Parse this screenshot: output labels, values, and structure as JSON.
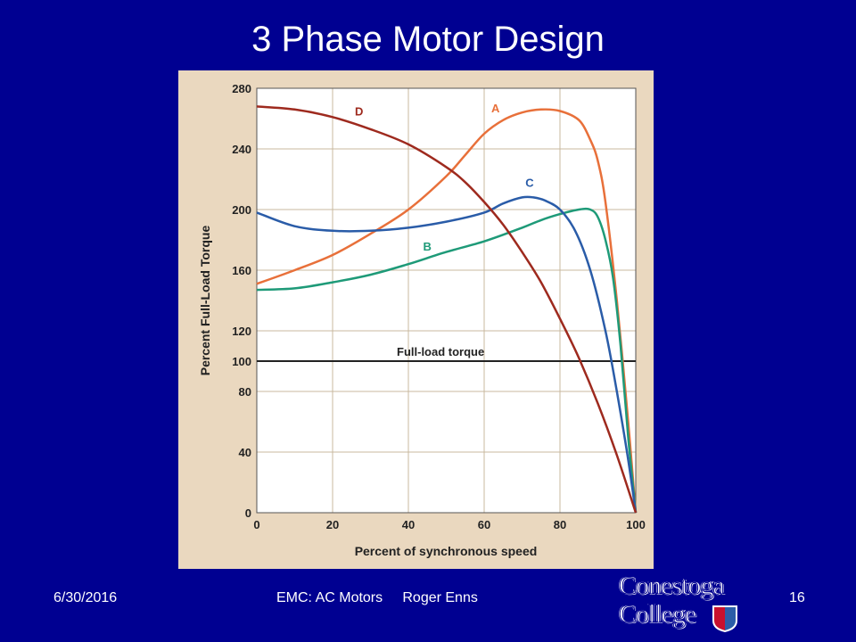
{
  "slide": {
    "title": "3 Phase Motor Design",
    "footer_date": "6/30/2016",
    "footer_center": "EMC: AC Motors     Roger Enns",
    "page_number": "16"
  },
  "logo": {
    "line1": "Conestoga",
    "line2": "College",
    "shield_colors": [
      "#c8102e",
      "#2b5da8"
    ]
  },
  "colors": {
    "background": "#000091",
    "panel": "#ead8bf",
    "grid": "#c9b89f",
    "A": "#e8703a",
    "B": "#1e9a78",
    "C": "#2a5ca8",
    "D": "#9e2a1e",
    "reference": "#222222"
  },
  "chart_data": {
    "type": "line",
    "title": "",
    "xlabel": "Percent of synchronous speed",
    "ylabel": "Percent Full-Load Torque",
    "xlim": [
      0,
      100
    ],
    "ylim": [
      0,
      280
    ],
    "xticks": [
      0,
      20,
      40,
      60,
      80,
      100
    ],
    "yticks": [
      0,
      40,
      80,
      100,
      120,
      160,
      200,
      240,
      280
    ],
    "grid": true,
    "series": [
      {
        "name": "A",
        "color": "#e8703a",
        "points": [
          [
            0,
            151
          ],
          [
            10,
            160
          ],
          [
            20,
            170
          ],
          [
            30,
            184
          ],
          [
            40,
            200
          ],
          [
            50,
            222
          ],
          [
            55,
            236
          ],
          [
            60,
            250
          ],
          [
            65,
            259
          ],
          [
            70,
            264
          ],
          [
            75,
            266
          ],
          [
            80,
            265
          ],
          [
            85,
            259
          ],
          [
            88,
            246
          ],
          [
            90,
            232
          ],
          [
            92,
            205
          ],
          [
            95,
            140
          ],
          [
            98,
            60
          ],
          [
            100,
            0
          ]
        ]
      },
      {
        "name": "B",
        "color": "#1e9a78",
        "points": [
          [
            0,
            147
          ],
          [
            10,
            148
          ],
          [
            20,
            152
          ],
          [
            30,
            157
          ],
          [
            40,
            164
          ],
          [
            50,
            172
          ],
          [
            60,
            179
          ],
          [
            70,
            188
          ],
          [
            75,
            193
          ],
          [
            80,
            197
          ],
          [
            85,
            200
          ],
          [
            88,
            200
          ],
          [
            90,
            195
          ],
          [
            92,
            180
          ],
          [
            94,
            155
          ],
          [
            96,
            110
          ],
          [
            98,
            50
          ],
          [
            100,
            0
          ]
        ]
      },
      {
        "name": "C",
        "color": "#2a5ca8",
        "points": [
          [
            0,
            198
          ],
          [
            10,
            189
          ],
          [
            20,
            186
          ],
          [
            30,
            186
          ],
          [
            40,
            188
          ],
          [
            50,
            192
          ],
          [
            60,
            198
          ],
          [
            65,
            204
          ],
          [
            70,
            208
          ],
          [
            73,
            208
          ],
          [
            76,
            206
          ],
          [
            80,
            200
          ],
          [
            84,
            186
          ],
          [
            88,
            160
          ],
          [
            92,
            120
          ],
          [
            95,
            80
          ],
          [
            98,
            35
          ],
          [
            100,
            0
          ]
        ]
      },
      {
        "name": "D",
        "color": "#9e2a1e",
        "points": [
          [
            0,
            268
          ],
          [
            10,
            266
          ],
          [
            20,
            261
          ],
          [
            30,
            253
          ],
          [
            40,
            243
          ],
          [
            50,
            228
          ],
          [
            55,
            218
          ],
          [
            60,
            205
          ],
          [
            65,
            190
          ],
          [
            70,
            172
          ],
          [
            75,
            152
          ],
          [
            80,
            128
          ],
          [
            85,
            102
          ],
          [
            90,
            72
          ],
          [
            95,
            38
          ],
          [
            100,
            0
          ]
        ]
      }
    ],
    "reference_line": {
      "label": "Full-load torque",
      "y": 100,
      "x_range": [
        0,
        100
      ]
    },
    "series_labels": [
      {
        "name": "A",
        "x": 63,
        "y": 264
      },
      {
        "name": "B",
        "x": 45,
        "y": 173
      },
      {
        "name": "C",
        "x": 72,
        "y": 215
      },
      {
        "name": "D",
        "x": 27,
        "y": 262
      }
    ]
  }
}
